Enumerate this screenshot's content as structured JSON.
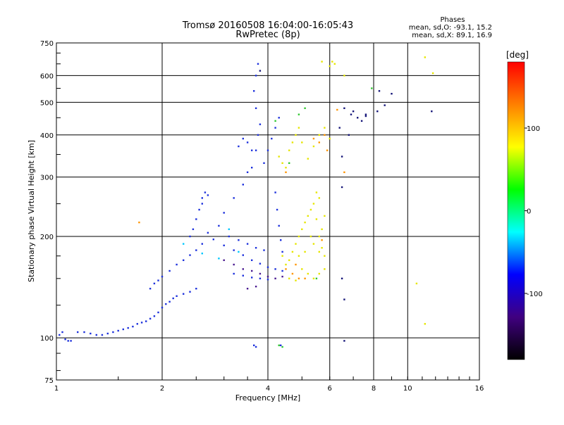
{
  "chart_data": {
    "type": "scatter",
    "title": "Tromsø 20160508 16:04:00-16:05:43",
    "subtitle": "RwPretec (8p)",
    "xlabel": "Frequency [MHz]",
    "ylabel": "Stationary phase Virtual Height [km]",
    "x_scale": "log2",
    "y_scale": "log",
    "xlim": [
      1,
      16
    ],
    "ylim": [
      75,
      750
    ],
    "x_ticks": [
      1,
      2,
      4,
      6,
      8,
      10,
      16
    ],
    "x_tick_labels": [
      "1",
      "2",
      "4",
      "6",
      "8",
      "10",
      "16"
    ],
    "y_ticks": [
      75,
      100,
      200,
      300,
      400,
      500,
      600,
      750
    ],
    "y_tick_labels": [
      "75",
      "100",
      "200",
      "300",
      "400",
      "500",
      "600",
      "750"
    ],
    "grid": true,
    "legend": {
      "title": "Phases",
      "lines": [
        "mean, sd,O: -93.1, 15.2",
        "mean, sd,X: 89.1, 16.9"
      ],
      "placement": "top-right"
    },
    "colorbar": {
      "label": "[deg]",
      "range": [
        -180,
        180
      ],
      "ticks": [
        100,
        0,
        -100
      ],
      "tick_labels": [
        "100",
        "0",
        "-100"
      ],
      "colormap": "rainbow",
      "stops": [
        "#ff0000",
        "#ff8000",
        "#ffff00",
        "#00ff00",
        "#00ffff",
        "#0000ff",
        "#400080",
        "#000000"
      ]
    },
    "series": [
      {
        "color": "#1e32dc",
        "points": [
          [
            1.02,
            102
          ],
          [
            1.04,
            104
          ],
          [
            1.06,
            99
          ],
          [
            1.08,
            98
          ],
          [
            1.1,
            98
          ],
          [
            1.15,
            104
          ],
          [
            1.2,
            104
          ],
          [
            1.25,
            103
          ],
          [
            1.3,
            102
          ],
          [
            1.35,
            102
          ],
          [
            1.4,
            103
          ],
          [
            1.45,
            104
          ],
          [
            1.5,
            105
          ],
          [
            1.55,
            106
          ],
          [
            1.6,
            107
          ],
          [
            1.65,
            108
          ],
          [
            1.7,
            110
          ],
          [
            1.75,
            111
          ],
          [
            1.8,
            112
          ],
          [
            1.85,
            114
          ],
          [
            1.9,
            116
          ],
          [
            1.95,
            119
          ],
          [
            2.0,
            123
          ],
          [
            2.05,
            126
          ],
          [
            2.1,
            128
          ],
          [
            2.15,
            131
          ],
          [
            2.2,
            133
          ],
          [
            2.3,
            135
          ],
          [
            2.4,
            137
          ],
          [
            2.5,
            140
          ],
          [
            1.85,
            140
          ],
          [
            1.9,
            145
          ],
          [
            1.95,
            148
          ],
          [
            2.0,
            152
          ],
          [
            2.1,
            158
          ],
          [
            2.2,
            165
          ],
          [
            2.3,
            170
          ],
          [
            2.4,
            176
          ],
          [
            2.5,
            182
          ],
          [
            2.6,
            190
          ],
          [
            2.4,
            200
          ],
          [
            2.45,
            210
          ],
          [
            2.5,
            225
          ],
          [
            2.55,
            240
          ],
          [
            2.6,
            260
          ],
          [
            2.7,
            205
          ],
          [
            2.8,
            196
          ],
          [
            3.0,
            188
          ],
          [
            3.2,
            182
          ],
          [
            3.4,
            176
          ],
          [
            3.6,
            170
          ],
          [
            3.8,
            166
          ],
          [
            4.0,
            162
          ],
          [
            4.2,
            160
          ],
          [
            4.4,
            158
          ],
          [
            2.9,
            215
          ],
          [
            3.0,
            235
          ],
          [
            3.2,
            260
          ],
          [
            3.4,
            285
          ],
          [
            3.5,
            310
          ],
          [
            3.1,
            200
          ],
          [
            3.3,
            195
          ],
          [
            3.5,
            190
          ],
          [
            3.7,
            185
          ],
          [
            3.9,
            182
          ],
          [
            3.2,
            155
          ],
          [
            3.4,
            153
          ],
          [
            3.6,
            151
          ],
          [
            3.8,
            150
          ],
          [
            4.0,
            149
          ],
          [
            3.6,
            320
          ],
          [
            3.7,
            360
          ],
          [
            3.75,
            400
          ],
          [
            3.8,
            430
          ],
          [
            3.7,
            480
          ],
          [
            3.65,
            540
          ],
          [
            3.7,
            600
          ],
          [
            3.75,
            650
          ],
          [
            3.9,
            330
          ],
          [
            4.0,
            360
          ],
          [
            4.1,
            390
          ],
          [
            4.2,
            420
          ],
          [
            4.3,
            450
          ],
          [
            4.2,
            270
          ],
          [
            4.25,
            240
          ],
          [
            4.3,
            215
          ],
          [
            4.35,
            195
          ],
          [
            4.4,
            180
          ],
          [
            2.6,
            250
          ],
          [
            2.65,
            270
          ],
          [
            2.7,
            265
          ],
          [
            3.3,
            370
          ],
          [
            3.4,
            390
          ],
          [
            3.5,
            380
          ],
          [
            3.6,
            360
          ],
          [
            3.65,
            95
          ],
          [
            3.7,
            94
          ],
          [
            4.35,
            95
          ]
        ]
      },
      {
        "color": "#4a1a90",
        "points": [
          [
            3.0,
            170
          ],
          [
            3.2,
            165
          ],
          [
            3.4,
            160
          ],
          [
            3.6,
            158
          ],
          [
            3.8,
            155
          ],
          [
            4.0,
            152
          ],
          [
            4.2,
            150
          ],
          [
            4.4,
            152
          ],
          [
            3.5,
            140
          ],
          [
            3.7,
            142
          ]
        ]
      },
      {
        "color": "#00c8ff",
        "points": [
          [
            2.3,
            190
          ],
          [
            2.6,
            178
          ],
          [
            2.9,
            172
          ],
          [
            3.1,
            210
          ],
          [
            3.3,
            180
          ]
        ]
      },
      {
        "color": "#e6e600",
        "points": [
          [
            4.4,
            175
          ],
          [
            4.5,
            165
          ],
          [
            4.6,
            170
          ],
          [
            4.7,
            180
          ],
          [
            4.8,
            190
          ],
          [
            4.9,
            200
          ],
          [
            5.0,
            210
          ],
          [
            5.1,
            220
          ],
          [
            5.2,
            230
          ],
          [
            5.3,
            240
          ],
          [
            5.4,
            250
          ],
          [
            5.5,
            225
          ],
          [
            5.6,
            200
          ],
          [
            5.7,
            185
          ],
          [
            5.8,
            175
          ],
          [
            5.0,
            160
          ],
          [
            5.2,
            155
          ],
          [
            5.4,
            150
          ],
          [
            5.6,
            155
          ],
          [
            5.8,
            160
          ],
          [
            4.8,
            148
          ],
          [
            4.6,
            150
          ],
          [
            5.3,
            200
          ],
          [
            5.4,
            190
          ],
          [
            5.6,
            180
          ],
          [
            5.1,
            180
          ],
          [
            4.9,
            175
          ],
          [
            5.7,
            210
          ],
          [
            5.8,
            230
          ],
          [
            5.5,
            270
          ],
          [
            5.6,
            260
          ],
          [
            4.6,
            360
          ],
          [
            4.7,
            380
          ],
          [
            4.8,
            400
          ],
          [
            4.9,
            420
          ],
          [
            5.0,
            380
          ],
          [
            5.2,
            340
          ],
          [
            5.4,
            370
          ],
          [
            5.6,
            400
          ],
          [
            5.8,
            420
          ],
          [
            6.0,
            390
          ],
          [
            6.0,
            640
          ],
          [
            6.1,
            660
          ],
          [
            6.2,
            650
          ],
          [
            5.7,
            660
          ],
          [
            6.6,
            600
          ],
          [
            4.4,
            330
          ],
          [
            4.5,
            320
          ],
          [
            4.3,
            345
          ],
          [
            11.2,
            680
          ],
          [
            11.8,
            610
          ],
          [
            10.6,
            145
          ],
          [
            11.2,
            110
          ]
        ]
      },
      {
        "color": "#ff9600",
        "points": [
          [
            4.5,
            160
          ],
          [
            4.7,
            155
          ],
          [
            4.8,
            165
          ],
          [
            5.6,
            380
          ],
          [
            5.8,
            400
          ],
          [
            5.1,
            150
          ],
          [
            4.9,
            150
          ],
          [
            5.7,
            195
          ],
          [
            5.4,
            390
          ],
          [
            5.9,
            360
          ],
          [
            4.5,
            310
          ],
          [
            6.3,
            475
          ],
          [
            6.6,
            310
          ],
          [
            1.72,
            220
          ]
        ]
      },
      {
        "color": "#32c832",
        "points": [
          [
            4.2,
            440
          ],
          [
            4.6,
            330
          ],
          [
            5.1,
            480
          ],
          [
            4.3,
            95
          ],
          [
            4.4,
            94
          ],
          [
            4.9,
            460
          ],
          [
            7.9,
            550
          ],
          [
            5.5,
            150
          ]
        ]
      },
      {
        "color": "#141478",
        "points": [
          [
            6.6,
            480
          ],
          [
            6.9,
            460
          ],
          [
            7.2,
            450
          ],
          [
            7.6,
            455
          ],
          [
            8.2,
            470
          ],
          [
            6.5,
            345
          ],
          [
            6.5,
            280
          ],
          [
            6.5,
            150
          ],
          [
            6.6,
            130
          ],
          [
            6.6,
            98
          ],
          [
            7.4,
            440
          ],
          [
            8.6,
            490
          ],
          [
            8.3,
            540
          ],
          [
            9.0,
            530
          ],
          [
            11.7,
            470
          ],
          [
            6.4,
            420
          ],
          [
            6.8,
            400
          ],
          [
            7.0,
            470
          ],
          [
            3.8,
            620
          ],
          [
            7.6,
            460
          ]
        ]
      }
    ]
  }
}
